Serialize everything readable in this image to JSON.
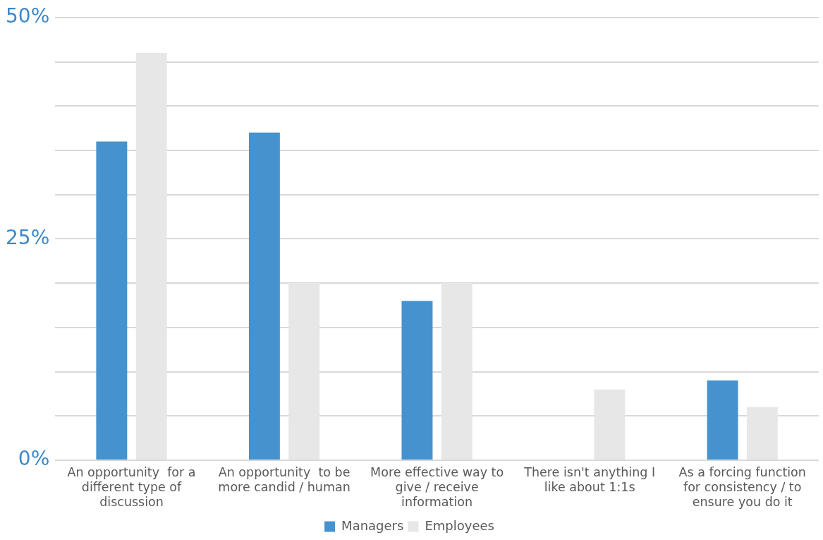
{
  "chart_data": {
    "type": "bar",
    "categories": [
      "An opportunity  for a\ndifferent type of\ndiscussion",
      "An opportunity  to be\nmore candid / human",
      "More effective way to\ngive / receive\ninformation",
      "There isn't anything I\nlike about 1:1s",
      "As a forcing function\nfor consistency / to\nensure you do it"
    ],
    "series": [
      {
        "name": "Managers",
        "color": "#4592ce",
        "values": [
          36,
          37,
          18,
          0,
          9
        ]
      },
      {
        "name": "Employees",
        "color": "#e7e7e7",
        "values": [
          46,
          20,
          20,
          8,
          6
        ]
      }
    ],
    "ylim": [
      0,
      50
    ],
    "yticks": [
      {
        "value": 0,
        "label": "0%"
      },
      {
        "value": 5,
        "label": null
      },
      {
        "value": 10,
        "label": null
      },
      {
        "value": 15,
        "label": null
      },
      {
        "value": 20,
        "label": null
      },
      {
        "value": 25,
        "label": "25%"
      },
      {
        "value": 30,
        "label": null
      },
      {
        "value": 35,
        "label": null
      },
      {
        "value": 40,
        "label": null
      },
      {
        "value": 45,
        "label": null
      },
      {
        "value": 50,
        "label": "50%"
      }
    ],
    "grid": "y",
    "legend": "bottom"
  }
}
